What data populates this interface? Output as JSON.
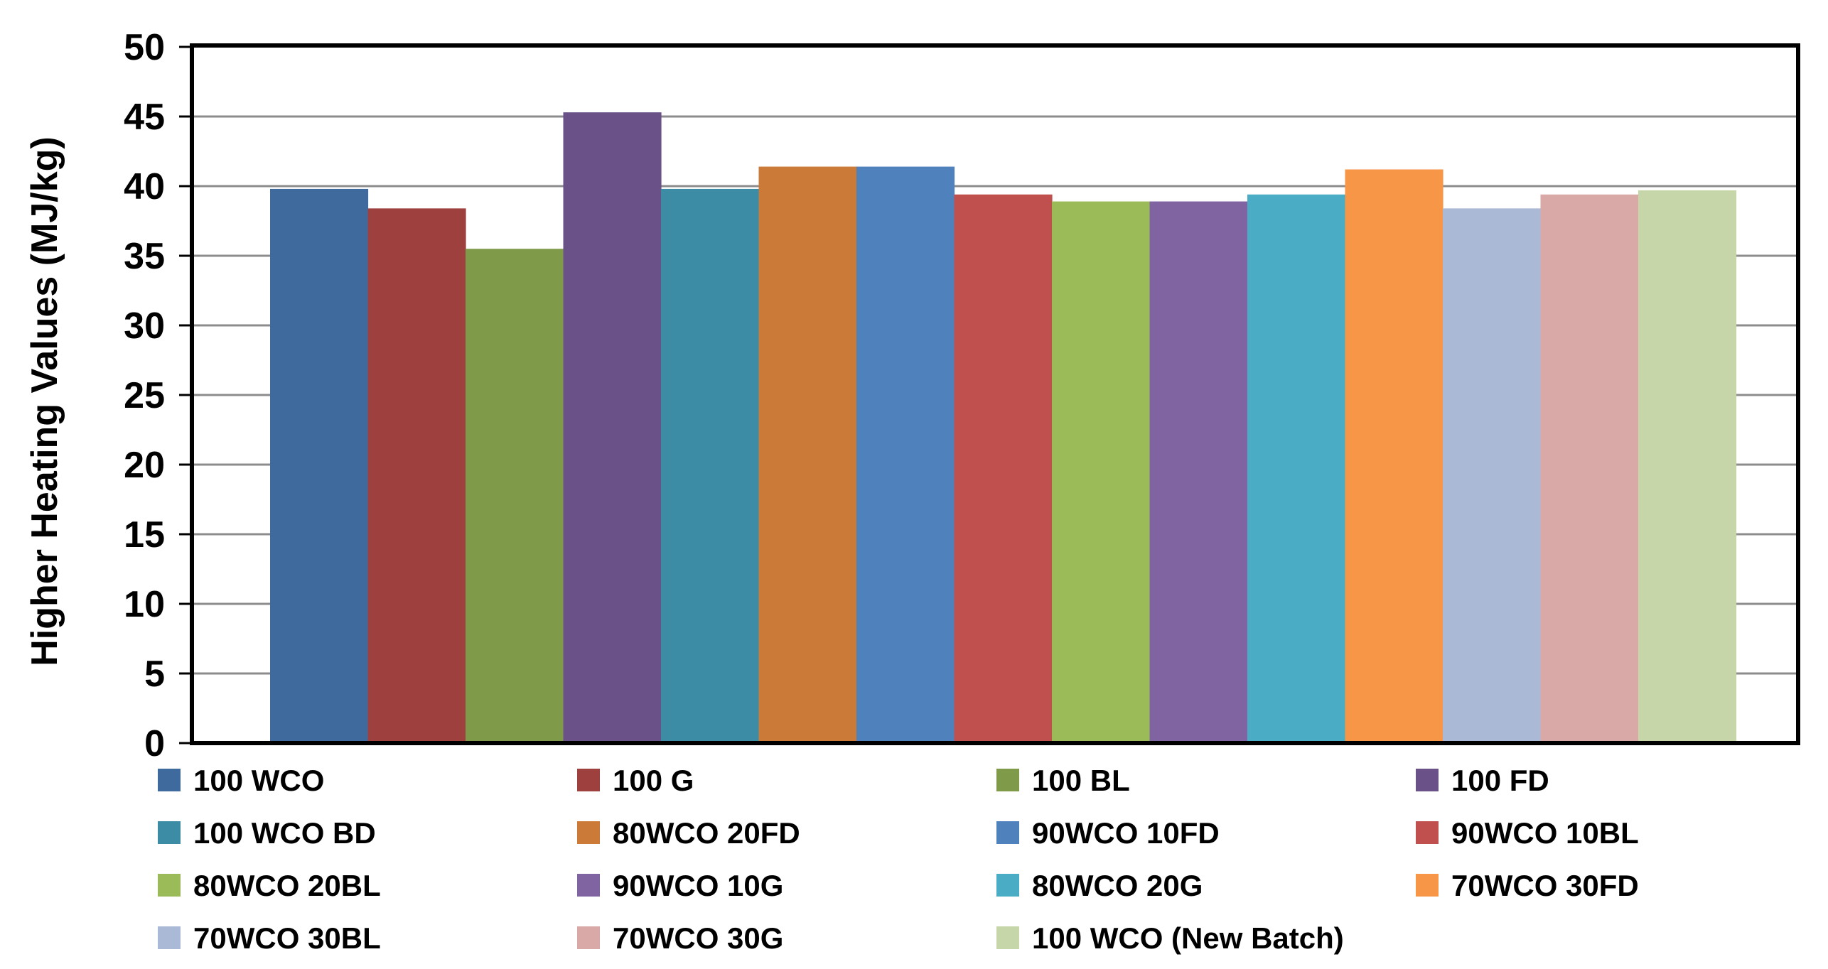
{
  "chart_data": {
    "type": "bar",
    "title": "",
    "xlabel": "",
    "ylabel": "Higher Heating Values (MJ/kg)",
    "ylim": [
      0,
      50
    ],
    "yticks": [
      0,
      5,
      10,
      15,
      20,
      25,
      30,
      35,
      40,
      45,
      50
    ],
    "grid": true,
    "legend_position": "bottom",
    "series": [
      {
        "name": "100 WCO",
        "value": 39.8,
        "color": "#3F6A9D"
      },
      {
        "name": "100 G",
        "value": 38.4,
        "color": "#9E413E"
      },
      {
        "name": "100 BL",
        "value": 35.5,
        "color": "#7F9A48"
      },
      {
        "name": "100 FD",
        "value": 45.3,
        "color": "#6A5187"
      },
      {
        "name": "100 WCO BD",
        "value": 39.8,
        "color": "#3B8CA4"
      },
      {
        "name": "80WCO 20FD",
        "value": 41.4,
        "color": "#CB7B37"
      },
      {
        "name": "90WCO 10FD",
        "value": 41.4,
        "color": "#4F81BD"
      },
      {
        "name": "90WCO 10BL",
        "value": 39.4,
        "color": "#C0504D"
      },
      {
        "name": "80WCO 20BL",
        "value": 38.9,
        "color": "#9BBB59"
      },
      {
        "name": "90WCO 10G",
        "value": 38.9,
        "color": "#8064A2"
      },
      {
        "name": "80WCO 20G",
        "value": 39.4,
        "color": "#4BACC6"
      },
      {
        "name": "70WCO 30FD",
        "value": 41.2,
        "color": "#F79646"
      },
      {
        "name": "70WCO 30BL",
        "value": 38.4,
        "color": "#AAB9D6"
      },
      {
        "name": "70WCO 30G",
        "value": 39.4,
        "color": "#D9A9A8"
      },
      {
        "name": "100 WCO (New Batch)",
        "value": 39.7,
        "color": "#C6D6A9"
      }
    ]
  }
}
